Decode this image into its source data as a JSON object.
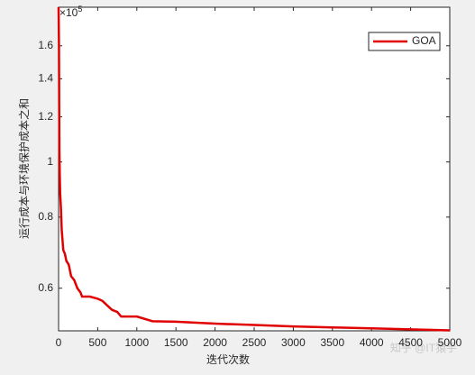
{
  "chart_data": {
    "type": "line",
    "x_label": "迭代次数",
    "y_label": "运行成本与环境保护成本之和",
    "y_exponent": {
      "base": "×10",
      "power": "5"
    },
    "watermark": "知乎 @IT猿手",
    "x": [
      0,
      5,
      10,
      15,
      20,
      30,
      40,
      60,
      80,
      100,
      130,
      160,
      200,
      240,
      280,
      300,
      400,
      500,
      560,
      620,
      680,
      750,
      800,
      900,
      1000,
      1200,
      1500,
      2000,
      2500,
      3000,
      3500,
      4000,
      4500,
      5000
    ],
    "series": [
      {
        "name": "GOA",
        "color": "#e00000",
        "values": [
          1.87,
          1.6,
          1.05,
          0.95,
          0.88,
          0.83,
          0.76,
          0.7,
          0.69,
          0.67,
          0.66,
          0.63,
          0.62,
          0.6,
          0.59,
          0.58,
          0.58,
          0.575,
          0.57,
          0.56,
          0.55,
          0.545,
          0.535,
          0.535,
          0.535,
          0.525,
          0.524,
          0.52,
          0.517,
          0.514,
          0.512,
          0.51,
          0.508,
          0.506
        ]
      }
    ],
    "xlim": [
      0,
      5000
    ],
    "xticks": [
      0,
      500,
      1000,
      1500,
      2000,
      2500,
      3000,
      3500,
      4000,
      4500,
      5000
    ],
    "ylim": [
      0.505,
      1.87
    ],
    "yticks": [
      0.6,
      0.8,
      1,
      1.2,
      1.4,
      1.6
    ],
    "yscale": "log",
    "legend": "northeast"
  }
}
